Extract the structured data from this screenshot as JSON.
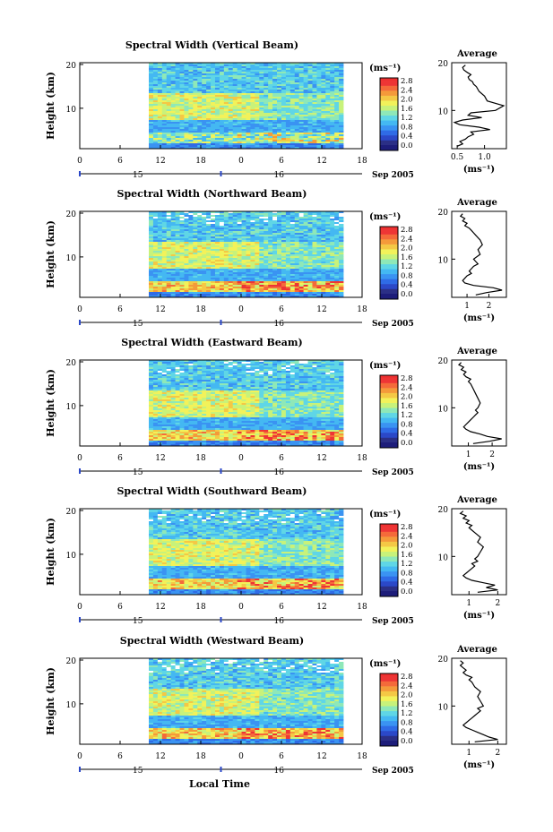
{
  "figure": {
    "x_axis_title": "Local Time",
    "colorbar_colors": [
      "#2b2f86",
      "#2b48c8",
      "#2f6be6",
      "#3a93f2",
      "#44b8f2",
      "#5fd6e6",
      "#8ee8b8",
      "#c8f27a",
      "#f2f25a",
      "#f4c845",
      "#f49a3a",
      "#f46a3a",
      "#ee3535"
    ],
    "colorbar_top_color": "#ee3030",
    "colorbar_bottom_color": "#1d1d7a"
  },
  "chart_data": [
    {
      "type": "heatmap",
      "title": "Spectral Width (Vertical Beam)",
      "ylabel": "Height (km)",
      "y_ticks": [
        "20",
        "10"
      ],
      "x_ticks": [
        "0",
        "6",
        "12",
        "18",
        "0",
        "6",
        "12",
        "18"
      ],
      "date_ticks": [
        "15",
        "16"
      ],
      "date_label": "Sep 2005",
      "unit_label": "(ms⁻¹)",
      "colorbar_ticks": [
        "2.8",
        "2.4",
        "2.0",
        "1.6",
        "1.2",
        "0.8",
        "0.4",
        "0.0"
      ],
      "colorbar_range": [
        0.0,
        2.8
      ],
      "profile": {
        "title": "Average",
        "xlabel": "(ms⁻¹)",
        "x_ticks": [
          "0.5",
          "1.0"
        ],
        "x_range": [
          0.4,
          1.4
        ],
        "y_ticks": [
          "20",
          "10"
        ],
        "y_range": [
          2,
          20
        ],
        "x": [
          0.5,
          0.6,
          0.55,
          0.65,
          0.7,
          0.8,
          0.75,
          1.1,
          0.9,
          0.55,
          0.45,
          0.6,
          0.95,
          0.7,
          0.75,
          1.2,
          1.35,
          1.05,
          1.0,
          0.9,
          0.85,
          0.8,
          0.78,
          0.72,
          0.7,
          0.75,
          0.68,
          0.62,
          0.6,
          0.65
        ],
        "y": [
          2.5,
          3.0,
          3.5,
          4.0,
          4.5,
          5.0,
          5.5,
          6.0,
          6.5,
          7.0,
          7.5,
          8.0,
          8.5,
          9.0,
          9.5,
          10.0,
          11.0,
          12.0,
          13.0,
          14.0,
          15.0,
          15.5,
          16.0,
          16.5,
          17.0,
          17.5,
          18.0,
          18.5,
          19.0,
          19.5
        ]
      }
    },
    {
      "type": "heatmap",
      "title": "Spectral Width (Northward Beam)",
      "ylabel": "Height (km)",
      "y_ticks": [
        "20",
        "10"
      ],
      "x_ticks": [
        "0",
        "6",
        "12",
        "18",
        "0",
        "6",
        "12",
        "18"
      ],
      "date_ticks": [
        "15",
        "16"
      ],
      "date_label": "Sep 2005",
      "unit_label": "(ms⁻¹)",
      "colorbar_ticks": [
        "2.8",
        "2.4",
        "2.0",
        "1.6",
        "1.2",
        "0.8",
        "0.4",
        "0.0"
      ],
      "colorbar_range": [
        0.0,
        2.8
      ],
      "profile": {
        "title": "Average",
        "xlabel": "(ms⁻¹)",
        "x_ticks": [
          "1",
          "2"
        ],
        "x_range": [
          0.3,
          2.8
        ],
        "y_ticks": [
          "20",
          "10"
        ],
        "y_range": [
          2,
          20
        ],
        "x": [
          1.4,
          1.9,
          2.6,
          2.2,
          1.3,
          0.9,
          0.8,
          0.9,
          1.0,
          1.2,
          1.1,
          1.2,
          1.3,
          1.5,
          1.4,
          1.3,
          1.6,
          1.5,
          1.7,
          1.6,
          1.4,
          1.3,
          1.2,
          1.1,
          0.9,
          1.0,
          0.8,
          0.9,
          0.7,
          0.8
        ],
        "y": [
          2.5,
          3.0,
          3.5,
          4.0,
          4.5,
          5.0,
          5.5,
          6.0,
          6.5,
          7.0,
          7.5,
          8.0,
          8.5,
          9.0,
          9.5,
          10.0,
          11.0,
          12.0,
          13.0,
          14.0,
          15.0,
          15.5,
          16.0,
          16.5,
          17.0,
          17.5,
          18.0,
          18.5,
          19.0,
          19.5
        ]
      }
    },
    {
      "type": "heatmap",
      "title": "Spectral Width (Eastward Beam)",
      "ylabel": "Height (km)",
      "y_ticks": [
        "20",
        "10"
      ],
      "x_ticks": [
        "0",
        "6",
        "12",
        "18",
        "0",
        "6",
        "12",
        "18"
      ],
      "date_ticks": [
        "15",
        "16"
      ],
      "date_label": "Sep 2005",
      "unit_label": "(ms⁻¹)",
      "colorbar_ticks": [
        "2.8",
        "2.4",
        "2.0",
        "1.6",
        "1.2",
        "0.8",
        "0.4",
        "0.0"
      ],
      "colorbar_range": [
        0.0,
        2.8
      ],
      "profile": {
        "title": "Average",
        "xlabel": "(ms⁻¹)",
        "x_ticks": [
          "1",
          "2"
        ],
        "x_range": [
          0.3,
          2.6
        ],
        "y_ticks": [
          "20",
          "10"
        ],
        "y_range": [
          2,
          20
        ],
        "x": [
          1.2,
          1.9,
          2.4,
          1.8,
          1.5,
          1.1,
          0.9,
          0.8,
          0.9,
          1.0,
          1.1,
          1.2,
          1.3,
          1.4,
          1.3,
          1.4,
          1.5,
          1.4,
          1.3,
          1.2,
          1.1,
          1.0,
          1.1,
          0.9,
          0.8,
          0.9,
          0.7,
          0.8,
          0.6,
          0.7
        ],
        "y": [
          2.5,
          3.0,
          3.5,
          4.0,
          4.5,
          5.0,
          5.5,
          6.0,
          6.5,
          7.0,
          7.5,
          8.0,
          8.5,
          9.0,
          9.5,
          10.0,
          11.0,
          12.0,
          13.0,
          14.0,
          15.0,
          15.5,
          16.0,
          16.5,
          17.0,
          17.5,
          18.0,
          18.5,
          19.0,
          19.5
        ]
      }
    },
    {
      "type": "heatmap",
      "title": "Spectral Width (Southward Beam)",
      "ylabel": "Height (km)",
      "y_ticks": [
        "20",
        "10"
      ],
      "x_ticks": [
        "0",
        "6",
        "12",
        "18",
        "0",
        "6",
        "12",
        "18"
      ],
      "date_ticks": [
        "15",
        "16"
      ],
      "date_label": "Sep 2005",
      "unit_label": "(ms⁻¹)",
      "colorbar_ticks": [
        "2.8",
        "2.4",
        "2.0",
        "1.6",
        "1.2",
        "0.8",
        "0.4",
        "0.0"
      ],
      "colorbar_range": [
        0.0,
        2.8
      ],
      "profile": {
        "title": "Average",
        "xlabel": "(ms⁻¹)",
        "x_ticks": [
          "1",
          "2"
        ],
        "x_range": [
          0.4,
          2.3
        ],
        "y_ticks": [
          "20",
          "10"
        ],
        "y_range": [
          2,
          20
        ],
        "x": [
          1.3,
          2.0,
          1.6,
          1.9,
          1.5,
          1.1,
          0.9,
          0.8,
          0.9,
          1.0,
          1.1,
          1.2,
          1.1,
          1.3,
          1.2,
          1.3,
          1.4,
          1.5,
          1.3,
          1.4,
          1.2,
          1.1,
          1.0,
          1.1,
          0.9,
          1.0,
          0.8,
          0.9,
          0.7,
          0.8
        ],
        "y": [
          2.5,
          3.0,
          3.5,
          4.0,
          4.5,
          5.0,
          5.5,
          6.0,
          6.5,
          7.0,
          7.5,
          8.0,
          8.5,
          9.0,
          9.5,
          10.0,
          11.0,
          12.0,
          13.0,
          14.0,
          15.0,
          15.5,
          16.0,
          16.5,
          17.0,
          17.5,
          18.0,
          18.5,
          19.0,
          19.5
        ]
      }
    },
    {
      "type": "heatmap",
      "title": "Spectral Width (Westward Beam)",
      "ylabel": "Height (km)",
      "y_ticks": [
        "20",
        "10"
      ],
      "x_ticks": [
        "0",
        "6",
        "12",
        "18",
        "0",
        "6",
        "12",
        "18"
      ],
      "date_ticks": [
        "15",
        "16"
      ],
      "date_label": "Sep 2005",
      "unit_label": "(ms⁻¹)",
      "colorbar_ticks": [
        "2.8",
        "2.4",
        "2.0",
        "1.6",
        "1.2",
        "0.8",
        "0.4",
        "0.0"
      ],
      "colorbar_range": [
        0.0,
        2.8
      ],
      "profile": {
        "title": "Average",
        "xlabel": "(ms⁻¹)",
        "x_ticks": [
          "1",
          "2"
        ],
        "x_range": [
          0.4,
          2.3
        ],
        "y_ticks": [
          "20",
          "10"
        ],
        "y_range": [
          2,
          20
        ],
        "x": [
          1.2,
          2.0,
          1.7,
          1.5,
          1.3,
          1.1,
          0.9,
          0.8,
          0.9,
          1.0,
          1.1,
          1.2,
          1.3,
          1.4,
          1.3,
          1.5,
          1.4,
          1.3,
          1.4,
          1.2,
          1.1,
          1.0,
          1.1,
          0.9,
          0.8,
          0.9,
          0.8,
          0.7,
          0.8,
          0.7
        ],
        "y": [
          2.5,
          3.0,
          3.5,
          4.0,
          4.5,
          5.0,
          5.5,
          6.0,
          6.5,
          7.0,
          7.5,
          8.0,
          8.5,
          9.0,
          9.5,
          10.0,
          11.0,
          12.0,
          13.0,
          14.0,
          15.0,
          15.5,
          16.0,
          16.5,
          17.0,
          17.5,
          18.0,
          18.5,
          19.0,
          19.5
        ]
      }
    }
  ]
}
